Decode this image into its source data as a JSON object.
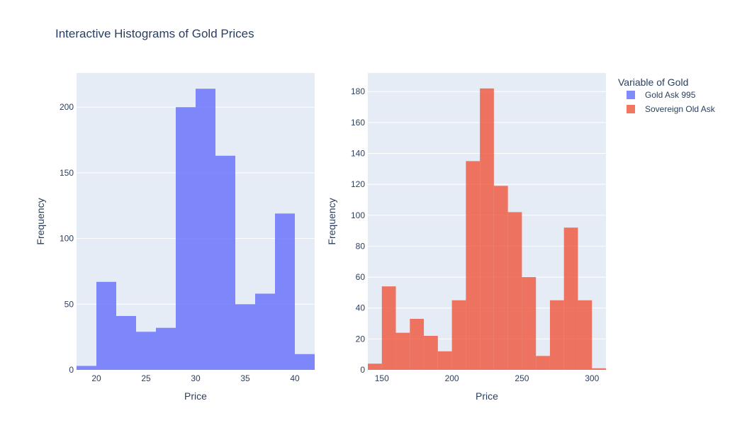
{
  "title": "Interactive Histograms of Gold Prices",
  "legend": {
    "title": "Variable of Gold",
    "items": [
      {
        "name": "Gold Ask 995",
        "color": "#636efa"
      },
      {
        "name": "Sovereign Old Ask",
        "color": "#ef553b"
      }
    ]
  },
  "colors": {
    "plot_bg": "#e5ecf6",
    "grid": "#ffffff",
    "text": "#2a3f5f"
  },
  "chart_data": [
    {
      "type": "bar",
      "series_name": "Gold Ask 995",
      "color": "#636efa",
      "opacity": 0.8,
      "xlabel": "Price",
      "ylabel": "Frequency",
      "xlim": [
        18,
        42
      ],
      "ylim": [
        0,
        226
      ],
      "xticks": [
        20,
        25,
        30,
        35,
        40
      ],
      "yticks": [
        0,
        50,
        100,
        150,
        200
      ],
      "bins": [
        {
          "x0": 18,
          "x1": 20,
          "y": 3
        },
        {
          "x0": 20,
          "x1": 22,
          "y": 67
        },
        {
          "x0": 22,
          "x1": 24,
          "y": 41
        },
        {
          "x0": 24,
          "x1": 26,
          "y": 29
        },
        {
          "x0": 26,
          "x1": 28,
          "y": 32
        },
        {
          "x0": 28,
          "x1": 30,
          "y": 200
        },
        {
          "x0": 30,
          "x1": 32,
          "y": 214
        },
        {
          "x0": 32,
          "x1": 34,
          "y": 163
        },
        {
          "x0": 34,
          "x1": 36,
          "y": 50
        },
        {
          "x0": 36,
          "x1": 38,
          "y": 58
        },
        {
          "x0": 38,
          "x1": 40,
          "y": 119
        },
        {
          "x0": 40,
          "x1": 42,
          "y": 12
        }
      ]
    },
    {
      "type": "bar",
      "series_name": "Sovereign Old Ask",
      "color": "#ef553b",
      "opacity": 0.8,
      "xlabel": "Price",
      "ylabel": "Frequency",
      "xlim": [
        140,
        310
      ],
      "ylim": [
        0,
        192
      ],
      "xticks": [
        150,
        200,
        250,
        300
      ],
      "yticks": [
        0,
        20,
        40,
        60,
        80,
        100,
        120,
        140,
        160,
        180
      ],
      "bins": [
        {
          "x0": 140,
          "x1": 150,
          "y": 4
        },
        {
          "x0": 150,
          "x1": 160,
          "y": 54
        },
        {
          "x0": 160,
          "x1": 170,
          "y": 24
        },
        {
          "x0": 170,
          "x1": 180,
          "y": 33
        },
        {
          "x0": 180,
          "x1": 190,
          "y": 22
        },
        {
          "x0": 190,
          "x1": 200,
          "y": 12
        },
        {
          "x0": 200,
          "x1": 210,
          "y": 45
        },
        {
          "x0": 210,
          "x1": 220,
          "y": 135
        },
        {
          "x0": 220,
          "x1": 230,
          "y": 182
        },
        {
          "x0": 230,
          "x1": 240,
          "y": 119
        },
        {
          "x0": 240,
          "x1": 250,
          "y": 102
        },
        {
          "x0": 250,
          "x1": 260,
          "y": 60
        },
        {
          "x0": 260,
          "x1": 270,
          "y": 9
        },
        {
          "x0": 270,
          "x1": 280,
          "y": 45
        },
        {
          "x0": 280,
          "x1": 290,
          "y": 92
        },
        {
          "x0": 290,
          "x1": 300,
          "y": 45
        },
        {
          "x0": 300,
          "x1": 310,
          "y": 1
        }
      ]
    }
  ]
}
